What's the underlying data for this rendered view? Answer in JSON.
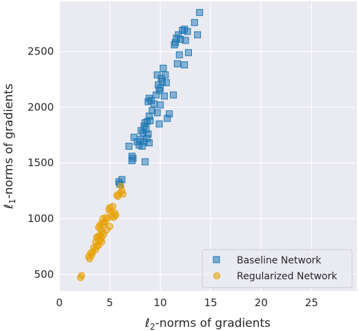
{
  "chart_data": {
    "type": "scatter",
    "xlabel": {
      "script": "ℓ",
      "sub": "2",
      "rest": "-norms of gradients"
    },
    "ylabel": {
      "script": "ℓ",
      "sub": "1",
      "rest": "-norms of gradients"
    },
    "xlim": [
      0,
      29.5
    ],
    "ylim": [
      350,
      2950
    ],
    "xticks": [
      0,
      5,
      10,
      15,
      20,
      25
    ],
    "yticks": [
      500,
      1000,
      1500,
      2000,
      2500
    ],
    "xtick_labels": [
      "0",
      "5",
      "10",
      "15",
      "20",
      "25"
    ],
    "ytick_labels": [
      "500",
      "1000",
      "1500",
      "2000",
      "2500"
    ],
    "grid": true,
    "legend_position": "lower-right",
    "background": "#eaeaf2",
    "series": [
      {
        "name": "Baseline Network",
        "marker": "square",
        "color": "#1f77b4",
        "points": [
          [
            13.9,
            2850
          ],
          [
            12.4,
            2700
          ],
          [
            12.7,
            2680
          ],
          [
            12.2,
            2690
          ],
          [
            13.4,
            2760
          ],
          [
            11.6,
            2620
          ],
          [
            11.8,
            2650
          ],
          [
            12.0,
            2610
          ],
          [
            11.5,
            2580
          ],
          [
            12.5,
            2600
          ],
          [
            13.7,
            2650
          ],
          [
            11.4,
            2560
          ],
          [
            12.8,
            2490
          ],
          [
            11.9,
            2470
          ],
          [
            12.4,
            2380
          ],
          [
            11.7,
            2390
          ],
          [
            10.3,
            2350
          ],
          [
            10.5,
            2290
          ],
          [
            9.7,
            2290
          ],
          [
            10.1,
            2260
          ],
          [
            10.6,
            2220
          ],
          [
            10.2,
            2230
          ],
          [
            9.8,
            2200
          ],
          [
            10.0,
            2170
          ],
          [
            9.9,
            2150
          ],
          [
            11.3,
            2110
          ],
          [
            10.4,
            2100
          ],
          [
            9.6,
            2110
          ],
          [
            8.9,
            2080
          ],
          [
            9.1,
            2060
          ],
          [
            8.8,
            2050
          ],
          [
            9.4,
            2030
          ],
          [
            10.0,
            2020
          ],
          [
            9.2,
            1970
          ],
          [
            9.7,
            1950
          ],
          [
            10.9,
            1940
          ],
          [
            8.9,
            1920
          ],
          [
            10.7,
            1900
          ],
          [
            8.7,
            1870
          ],
          [
            9.0,
            1880
          ],
          [
            8.5,
            1860
          ],
          [
            9.9,
            1850
          ],
          [
            8.4,
            1830
          ],
          [
            8.6,
            1800
          ],
          [
            8.1,
            1790
          ],
          [
            8.3,
            1770
          ],
          [
            8.8,
            1760
          ],
          [
            8.7,
            1720
          ],
          [
            7.4,
            1730
          ],
          [
            8.0,
            1710
          ],
          [
            7.7,
            1690
          ],
          [
            8.4,
            1690
          ],
          [
            8.9,
            1680
          ],
          [
            7.9,
            1660
          ],
          [
            8.2,
            1650
          ],
          [
            6.9,
            1650
          ],
          [
            7.2,
            1560
          ],
          [
            7.3,
            1540
          ],
          [
            7.2,
            1520
          ],
          [
            8.5,
            1510
          ],
          [
            6.2,
            1350
          ],
          [
            5.9,
            1330
          ],
          [
            6.0,
            1310
          ]
        ]
      },
      {
        "name": "Regularized Network",
        "marker": "circle",
        "color": "#e69f00",
        "points": [
          [
            6.1,
            1290
          ],
          [
            6.2,
            1250
          ],
          [
            6.3,
            1220
          ],
          [
            6.0,
            1230
          ],
          [
            5.7,
            1210
          ],
          [
            5.8,
            1200
          ],
          [
            5.3,
            1110
          ],
          [
            5.0,
            1100
          ],
          [
            4.9,
            1080
          ],
          [
            5.1,
            1060
          ],
          [
            5.5,
            1050
          ],
          [
            5.6,
            1030
          ],
          [
            5.4,
            1010
          ],
          [
            5.2,
            1020
          ],
          [
            4.8,
            1000
          ],
          [
            4.6,
            1010
          ],
          [
            4.3,
            1000
          ],
          [
            4.5,
            970
          ],
          [
            4.2,
            960
          ],
          [
            4.4,
            950
          ],
          [
            4.0,
            940
          ],
          [
            3.9,
            920
          ],
          [
            4.1,
            900
          ],
          [
            4.3,
            880
          ],
          [
            4.7,
            900
          ],
          [
            5.0,
            930
          ],
          [
            4.4,
            860
          ],
          [
            4.0,
            850
          ],
          [
            3.8,
            840
          ],
          [
            4.2,
            830
          ],
          [
            3.7,
            830
          ],
          [
            4.1,
            810
          ],
          [
            3.9,
            800
          ],
          [
            3.6,
            790
          ],
          [
            4.2,
            790
          ],
          [
            3.9,
            760
          ],
          [
            3.7,
            750
          ],
          [
            3.4,
            740
          ],
          [
            3.6,
            720
          ],
          [
            3.3,
            700
          ],
          [
            3.1,
            690
          ],
          [
            3.2,
            670
          ],
          [
            2.9,
            660
          ],
          [
            3.0,
            640
          ],
          [
            2.2,
            490
          ],
          [
            2.1,
            470
          ]
        ]
      }
    ]
  }
}
